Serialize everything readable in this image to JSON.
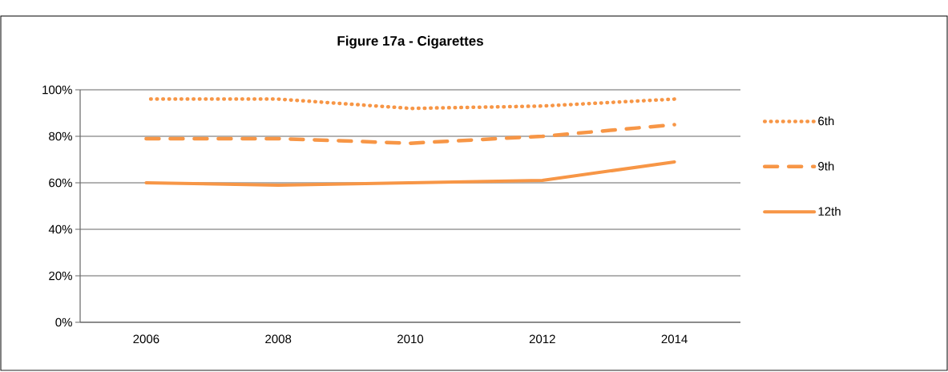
{
  "chart_data": {
    "type": "line",
    "title": "Figure 17a - Cigarettes",
    "categories": [
      "2006",
      "2008",
      "2010",
      "2012",
      "2014"
    ],
    "series": [
      {
        "name": "6th",
        "color": "#f79646",
        "line_style": "dotted",
        "values": [
          96,
          96,
          92,
          93,
          96
        ]
      },
      {
        "name": "9th",
        "color": "#f79646",
        "line_style": "dashed",
        "values": [
          79,
          79,
          77,
          80,
          85
        ]
      },
      {
        "name": "12th",
        "color": "#f79646",
        "line_style": "solid",
        "values": [
          60,
          59,
          60,
          61,
          69
        ]
      }
    ],
    "ylim": [
      0,
      100
    ],
    "yticks": [
      {
        "value": 0,
        "label": "0%"
      },
      {
        "value": 20,
        "label": "20%"
      },
      {
        "value": 40,
        "label": "40%"
      },
      {
        "value": 60,
        "label": "60%"
      },
      {
        "value": 80,
        "label": "80%"
      },
      {
        "value": 100,
        "label": "100%"
      }
    ],
    "grid": "y",
    "legend": "right",
    "marker": "none"
  }
}
